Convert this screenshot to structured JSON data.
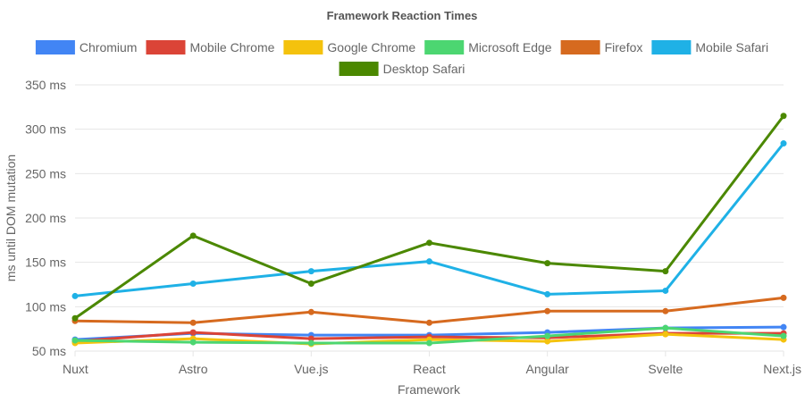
{
  "chart_data": {
    "type": "line",
    "title": "Framework Reaction Times",
    "xlabel": "Framework",
    "ylabel": "ms until DOM mutation",
    "categories": [
      "Nuxt",
      "Astro",
      "Vue.js",
      "React",
      "Angular",
      "Svelte",
      "Next.js"
    ],
    "ylim": [
      50,
      350
    ],
    "yticks": [
      50,
      100,
      150,
      200,
      250,
      300,
      350
    ],
    "ytick_suffix": " ms",
    "grid": true,
    "legend_position": "top",
    "series": [
      {
        "name": "Chromium",
        "color": "#4285F4",
        "values": [
          63,
          70,
          68,
          68,
          71,
          76,
          77
        ]
      },
      {
        "name": "Mobile Chrome",
        "color": "#DB4437",
        "values": [
          61,
          71,
          64,
          66,
          65,
          70,
          70
        ]
      },
      {
        "name": "Google Chrome",
        "color": "#F4C20D",
        "values": [
          59,
          64,
          58,
          63,
          61,
          69,
          63
        ]
      },
      {
        "name": "Microsoft Edge",
        "color": "#4CD671",
        "values": [
          62,
          60,
          59,
          59,
          67,
          76,
          67
        ]
      },
      {
        "name": "Firefox",
        "color": "#D66A1F",
        "values": [
          84,
          82,
          94,
          82,
          95,
          95,
          110
        ]
      },
      {
        "name": "Mobile Safari",
        "color": "#1FB1E6",
        "values": [
          112,
          126,
          140,
          151,
          114,
          118,
          284
        ]
      },
      {
        "name": "Desktop Safari",
        "color": "#4B8800",
        "values": [
          87,
          180,
          126,
          172,
          149,
          140,
          315
        ]
      }
    ]
  }
}
